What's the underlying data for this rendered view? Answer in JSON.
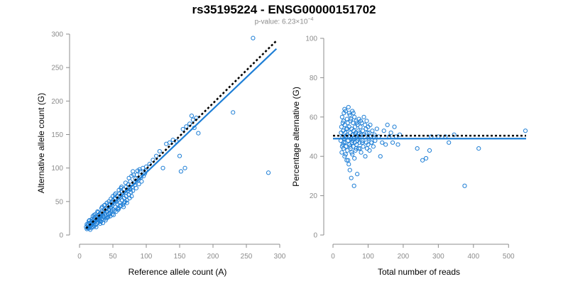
{
  "title": "rs35195224 - ENSG00000151702",
  "subtitle": {
    "prefix": "p-value: 6.23×10",
    "exponent": "−4"
  },
  "colors": {
    "points": "#1f7fd6",
    "fit_line": "#1f7fd6",
    "reference_line": "#000000",
    "axis": "#8c8c8c"
  },
  "chart_data": [
    {
      "type": "scatter",
      "xlabel": "Reference allele count (A)",
      "ylabel": "Alternative allele count (G)",
      "xlim": [
        0,
        300
      ],
      "ylim": [
        0,
        300
      ],
      "xticks": [
        0,
        50,
        100,
        150,
        200,
        250,
        300
      ],
      "yticks": [
        0,
        50,
        100,
        150,
        200,
        250,
        300
      ],
      "fit_line": {
        "from": [
          10,
          8
        ],
        "to": [
          295,
          278
        ]
      },
      "reference_line": {
        "from": [
          10,
          10
        ],
        "to": [
          295,
          290
        ]
      },
      "points": [
        [
          10,
          12
        ],
        [
          12,
          14
        ],
        [
          14,
          10
        ],
        [
          15,
          18
        ],
        [
          16,
          13
        ],
        [
          18,
          20
        ],
        [
          19,
          16
        ],
        [
          20,
          22
        ],
        [
          21,
          18
        ],
        [
          22,
          25
        ],
        [
          23,
          20
        ],
        [
          24,
          15
        ],
        [
          25,
          28
        ],
        [
          26,
          22
        ],
        [
          27,
          24
        ],
        [
          28,
          19
        ],
        [
          29,
          30
        ],
        [
          30,
          26
        ],
        [
          30,
          21
        ],
        [
          31,
          33
        ],
        [
          32,
          28
        ],
        [
          33,
          24
        ],
        [
          34,
          35
        ],
        [
          35,
          30
        ],
        [
          35,
          18
        ],
        [
          36,
          27
        ],
        [
          37,
          38
        ],
        [
          38,
          32
        ],
        [
          39,
          29
        ],
        [
          40,
          40
        ],
        [
          40,
          25
        ],
        [
          41,
          35
        ],
        [
          42,
          43
        ],
        [
          43,
          31
        ],
        [
          44,
          38
        ],
        [
          45,
          46
        ],
        [
          45,
          33
        ],
        [
          46,
          28
        ],
        [
          47,
          41
        ],
        [
          48,
          49
        ],
        [
          48,
          36
        ],
        [
          49,
          44
        ],
        [
          50,
          52
        ],
        [
          50,
          38
        ],
        [
          51,
          30
        ],
        [
          52,
          47
        ],
        [
          53,
          55
        ],
        [
          54,
          42
        ],
        [
          55,
          50
        ],
        [
          55,
          35
        ],
        [
          56,
          58
        ],
        [
          57,
          46
        ],
        [
          58,
          53
        ],
        [
          59,
          40
        ],
        [
          60,
          62
        ],
        [
          60,
          48
        ],
        [
          61,
          56
        ],
        [
          62,
          44
        ],
        [
          63,
          65
        ],
        [
          64,
          52
        ],
        [
          65,
          60
        ],
        [
          65,
          45
        ],
        [
          66,
          68
        ],
        [
          67,
          55
        ],
        [
          68,
          50
        ],
        [
          69,
          63
        ],
        [
          70,
          72
        ],
        [
          70,
          58
        ],
        [
          71,
          48
        ],
        [
          72,
          66
        ],
        [
          73,
          75
        ],
        [
          74,
          60
        ],
        [
          75,
          70
        ],
        [
          75,
          55
        ],
        [
          76,
          80
        ],
        [
          77,
          64
        ],
        [
          78,
          88
        ],
        [
          78,
          58
        ],
        [
          79,
          72
        ],
        [
          80,
          95
        ],
        [
          80,
          66
        ],
        [
          82,
          78
        ],
        [
          84,
          84
        ],
        [
          85,
          70
        ],
        [
          86,
          90
        ],
        [
          88,
          82
        ],
        [
          90,
          98
        ],
        [
          92,
          86
        ],
        [
          95,
          100
        ],
        [
          98,
          92
        ],
        [
          100,
          102
        ],
        [
          105,
          106
        ],
        [
          110,
          112
        ],
        [
          115,
          118
        ],
        [
          120,
          125
        ],
        [
          125,
          100
        ],
        [
          130,
          136
        ],
        [
          135,
          138
        ],
        [
          140,
          142
        ],
        [
          145,
          140
        ],
        [
          150,
          118
        ],
        [
          152,
          95
        ],
        [
          155,
          158
        ],
        [
          158,
          100
        ],
        [
          160,
          162
        ],
        [
          165,
          166
        ],
        [
          168,
          178
        ],
        [
          170,
          172
        ],
        [
          172,
          160
        ],
        [
          175,
          175
        ],
        [
          178,
          152
        ],
        [
          230,
          183
        ],
        [
          260,
          294
        ],
        [
          283,
          93
        ],
        [
          15,
          22
        ],
        [
          18,
          11
        ],
        [
          20,
          28
        ],
        [
          22,
          14
        ],
        [
          24,
          31
        ],
        [
          26,
          17
        ],
        [
          28,
          34
        ],
        [
          32,
          20
        ],
        [
          34,
          42
        ],
        [
          36,
          23
        ],
        [
          38,
          45
        ],
        [
          42,
          26
        ],
        [
          44,
          50
        ],
        [
          46,
          32
        ],
        [
          50,
          58
        ],
        [
          52,
          36
        ],
        [
          54,
          62
        ],
        [
          58,
          38
        ],
        [
          62,
          70
        ],
        [
          66,
          42
        ],
        [
          22,
          30
        ],
        [
          25,
          12
        ],
        [
          27,
          35
        ],
        [
          29,
          23
        ],
        [
          31,
          17
        ],
        [
          33,
          40
        ],
        [
          37,
          44
        ],
        [
          39,
          22
        ],
        [
          41,
          48
        ],
        [
          43,
          27
        ],
        [
          47,
          54
        ],
        [
          49,
          31
        ],
        [
          53,
          60
        ],
        [
          57,
          40
        ],
        [
          59,
          67
        ],
        [
          61,
          43
        ],
        [
          63,
          72
        ],
        [
          67,
          48
        ],
        [
          69,
          78
        ],
        [
          71,
          52
        ],
        [
          11,
          9
        ],
        [
          13,
          17
        ],
        [
          17,
          15
        ],
        [
          19,
          24
        ],
        [
          21,
          12
        ],
        [
          23,
          27
        ],
        [
          11,
          16
        ],
        [
          14,
          21
        ],
        [
          16,
          8
        ],
        [
          13,
          11
        ],
        [
          74,
          85
        ],
        [
          76,
          68
        ],
        [
          81,
          90
        ],
        [
          83,
          75
        ],
        [
          87,
          96
        ],
        [
          89,
          76
        ],
        [
          91,
          95
        ],
        [
          93,
          80
        ],
        [
          96,
          88
        ],
        [
          99,
          96
        ]
      ]
    },
    {
      "type": "scatter",
      "xlabel": "Total number of reads",
      "ylabel": "Percentage alternative (G)",
      "xlim": [
        0,
        550
      ],
      "ylim": [
        0,
        100
      ],
      "xticks": [
        0,
        100,
        200,
        300,
        400,
        500
      ],
      "yticks": [
        0,
        20,
        40,
        60,
        80,
        100
      ],
      "fit_line": {
        "from": [
          0,
          49
        ],
        "to": [
          550,
          49
        ]
      },
      "reference_line": {
        "from": [
          0,
          50.5
        ],
        "to": [
          550,
          50.5
        ]
      },
      "points": [
        [
          22,
          48
        ],
        [
          24,
          55
        ],
        [
          25,
          42
        ],
        [
          26,
          60
        ],
        [
          27,
          50
        ],
        [
          28,
          46
        ],
        [
          29,
          53
        ],
        [
          30,
          58
        ],
        [
          30,
          44
        ],
        [
          31,
          62
        ],
        [
          32,
          49
        ],
        [
          33,
          40
        ],
        [
          34,
          56
        ],
        [
          35,
          52
        ],
        [
          35,
          47
        ],
        [
          36,
          63
        ],
        [
          37,
          45
        ],
        [
          38,
          54
        ],
        [
          39,
          38
        ],
        [
          40,
          51
        ],
        [
          40,
          59
        ],
        [
          41,
          43
        ],
        [
          42,
          57
        ],
        [
          43,
          48
        ],
        [
          44,
          65
        ],
        [
          45,
          50
        ],
        [
          45,
          36
        ],
        [
          46,
          55
        ],
        [
          47,
          46
        ],
        [
          48,
          61
        ],
        [
          48,
          33
        ],
        [
          49,
          52
        ],
        [
          50,
          44
        ],
        [
          50,
          58
        ],
        [
          51,
          49
        ],
        [
          52,
          29
        ],
        [
          53,
          54
        ],
        [
          54,
          47
        ],
        [
          55,
          63
        ],
        [
          55,
          41
        ],
        [
          56,
          51
        ],
        [
          57,
          57
        ],
        [
          58,
          45
        ],
        [
          59,
          53
        ],
        [
          60,
          49
        ],
        [
          60,
          25
        ],
        [
          61,
          60
        ],
        [
          62,
          47
        ],
        [
          63,
          55
        ],
        [
          64,
          43
        ],
        [
          65,
          52
        ],
        [
          66,
          58
        ],
        [
          67,
          46
        ],
        [
          68,
          50
        ],
        [
          69,
          31
        ],
        [
          70,
          56
        ],
        [
          70,
          48
        ],
        [
          72,
          53
        ],
        [
          73,
          44
        ],
        [
          74,
          59
        ],
        [
          75,
          50
        ],
        [
          76,
          47
        ],
        [
          78,
          55
        ],
        [
          80,
          42
        ],
        [
          80,
          51
        ],
        [
          82,
          57
        ],
        [
          84,
          48
        ],
        [
          85,
          53
        ],
        [
          86,
          45
        ],
        [
          88,
          60
        ],
        [
          90,
          50
        ],
        [
          92,
          40
        ],
        [
          94,
          54
        ],
        [
          95,
          47
        ],
        [
          96,
          58
        ],
        [
          98,
          52
        ],
        [
          100,
          46
        ],
        [
          100,
          55
        ],
        [
          102,
          49
        ],
        [
          104,
          43
        ],
        [
          106,
          56
        ],
        [
          108,
          50
        ],
        [
          110,
          47
        ],
        [
          112,
          53
        ],
        [
          115,
          45
        ],
        [
          118,
          51
        ],
        [
          120,
          48
        ],
        [
          125,
          54
        ],
        [
          130,
          50
        ],
        [
          135,
          40
        ],
        [
          140,
          47
        ],
        [
          145,
          53
        ],
        [
          150,
          46
        ],
        [
          155,
          56
        ],
        [
          160,
          50
        ],
        [
          165,
          52
        ],
        [
          170,
          47
        ],
        [
          175,
          55
        ],
        [
          180,
          50
        ],
        [
          185,
          46
        ],
        [
          190,
          51
        ],
        [
          240,
          44
        ],
        [
          255,
          38
        ],
        [
          265,
          39
        ],
        [
          275,
          43
        ],
        [
          280,
          50
        ],
        [
          300,
          50
        ],
        [
          320,
          50
        ],
        [
          330,
          47
        ],
        [
          345,
          51
        ],
        [
          375,
          25
        ],
        [
          415,
          44
        ],
        [
          548,
          53
        ],
        [
          23,
          52
        ],
        [
          26,
          45
        ],
        [
          28,
          57
        ],
        [
          31,
          47
        ],
        [
          33,
          64
        ],
        [
          36,
          41
        ],
        [
          38,
          50
        ],
        [
          41,
          54
        ],
        [
          43,
          38
        ],
        [
          46,
          62
        ],
        [
          49,
          45
        ],
        [
          51,
          59
        ],
        [
          53,
          42
        ],
        [
          56,
          48
        ],
        [
          58,
          62
        ],
        [
          61,
          39
        ],
        [
          63,
          51
        ],
        [
          66,
          44
        ],
        [
          68,
          57
        ],
        [
          71,
          49
        ],
        [
          74,
          52
        ],
        [
          77,
          44
        ],
        [
          79,
          58
        ],
        [
          83,
          47
        ],
        [
          87,
          51
        ],
        [
          91,
          56
        ],
        [
          97,
          44
        ],
        [
          103,
          52
        ],
        [
          109,
          47
        ],
        [
          116,
          50
        ]
      ]
    }
  ]
}
